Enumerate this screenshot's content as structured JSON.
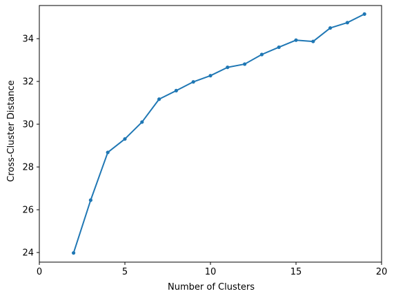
{
  "chart_data": {
    "type": "line",
    "title": "",
    "xlabel": "Number of Clusters",
    "ylabel": "Cross-Cluster Distance",
    "xlim": [
      0,
      20
    ],
    "ylim": [
      23.55,
      35.55
    ],
    "xticks": [
      0,
      5,
      10,
      15,
      20
    ],
    "yticks": [
      24,
      26,
      28,
      30,
      32,
      34
    ],
    "grid": false,
    "series": [
      {
        "name": "distance",
        "color": "#1f77b4",
        "marker": "circle",
        "x": [
          2,
          3,
          4,
          5,
          6,
          7,
          8,
          9,
          10,
          11,
          12,
          13,
          14,
          15,
          16,
          17,
          18,
          19
        ],
        "y": [
          23.98,
          26.45,
          28.68,
          29.31,
          30.1,
          31.17,
          31.57,
          31.98,
          32.27,
          32.66,
          32.81,
          33.26,
          33.6,
          33.93,
          33.87,
          34.5,
          34.75,
          35.15
        ]
      }
    ]
  }
}
